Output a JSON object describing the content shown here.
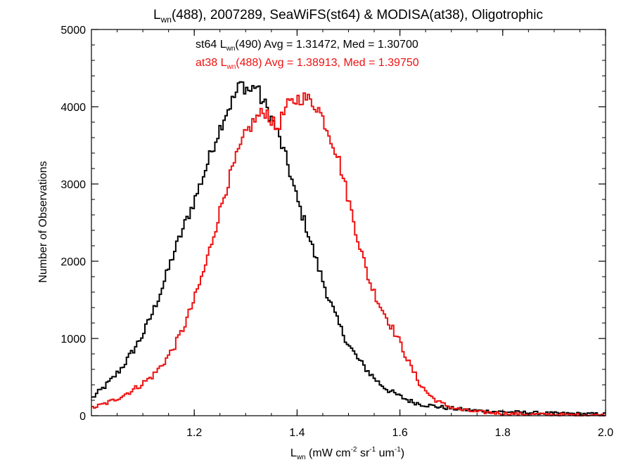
{
  "chart_data": {
    "type": "line",
    "title": {
      "sym": "L",
      "sub": "wn",
      "rest": "(488), 2007289, SeaWiFS(st64) & MODISA(at38), Oligotrophic"
    },
    "xlabel": {
      "sym": "L",
      "sub": "wn",
      "pre": " (mW cm",
      "sup1": "-2",
      "mid": " sr",
      "sup2": "-1",
      "mid2": " um",
      "sup3": "-1",
      "post": ")"
    },
    "ylabel": "Number of Observations",
    "xlim": [
      1.0,
      2.0
    ],
    "ylim": [
      0,
      5000
    ],
    "xticks": [
      1.2,
      1.4,
      1.6,
      1.8,
      2.0
    ],
    "xtick_labels": [
      "1.2",
      "1.4",
      "1.6",
      "1.8",
      "2.0"
    ],
    "yticks": [
      0,
      1000,
      2000,
      3000,
      4000,
      5000
    ],
    "ytick_labels": [
      "0",
      "1000",
      "2000",
      "3000",
      "4000",
      "5000"
    ],
    "grid": false,
    "legend_position": "top-center",
    "series": [
      {
        "legend": {
          "pre": "st64 L",
          "sub": "wn",
          "post": "(490) Avg = 1.31472, Med = 1.30700"
        },
        "color": "#000000",
        "step": true,
        "x": [
          1.0,
          1.02,
          1.04,
          1.06,
          1.08,
          1.1,
          1.12,
          1.14,
          1.16,
          1.18,
          1.2,
          1.22,
          1.24,
          1.26,
          1.28,
          1.29,
          1.3,
          1.31,
          1.32,
          1.33,
          1.34,
          1.35,
          1.36,
          1.38,
          1.4,
          1.42,
          1.44,
          1.46,
          1.48,
          1.5,
          1.52,
          1.54,
          1.56,
          1.58,
          1.6,
          1.62,
          1.64,
          1.66,
          1.68,
          1.7,
          1.72,
          1.75,
          1.8,
          1.85,
          1.9,
          1.95,
          2.0
        ],
        "y": [
          220,
          340,
          470,
          630,
          830,
          1050,
          1350,
          1700,
          2100,
          2450,
          2780,
          3150,
          3550,
          3900,
          4150,
          4300,
          4250,
          4200,
          4300,
          4100,
          4000,
          3850,
          3700,
          3300,
          2800,
          2400,
          1950,
          1550,
          1200,
          920,
          720,
          560,
          420,
          320,
          250,
          190,
          150,
          130,
          110,
          95,
          80,
          65,
          50,
          40,
          30,
          25,
          20
        ]
      },
      {
        "legend": {
          "pre": "at38 L",
          "sub": "wn",
          "post": "(488) Avg = 1.38913, Med = 1.39750"
        },
        "color": "#ee1111",
        "step": true,
        "x": [
          1.0,
          1.02,
          1.04,
          1.06,
          1.08,
          1.1,
          1.12,
          1.14,
          1.16,
          1.18,
          1.2,
          1.22,
          1.24,
          1.26,
          1.28,
          1.3,
          1.32,
          1.34,
          1.36,
          1.38,
          1.4,
          1.41,
          1.42,
          1.43,
          1.44,
          1.46,
          1.48,
          1.5,
          1.52,
          1.54,
          1.56,
          1.58,
          1.6,
          1.62,
          1.64,
          1.66,
          1.68,
          1.7,
          1.72,
          1.75,
          1.8,
          1.85,
          1.9,
          1.95,
          2.0
        ],
        "y": [
          100,
          140,
          190,
          260,
          330,
          420,
          520,
          680,
          880,
          1150,
          1500,
          1900,
          2400,
          2900,
          3300,
          3650,
          3850,
          3950,
          3700,
          4000,
          4100,
          4120,
          4100,
          4050,
          4000,
          3700,
          3350,
          2800,
          2250,
          1750,
          1450,
          1200,
          950,
          650,
          400,
          250,
          160,
          110,
          75,
          50,
          30,
          20,
          15,
          10,
          8
        ]
      }
    ]
  }
}
